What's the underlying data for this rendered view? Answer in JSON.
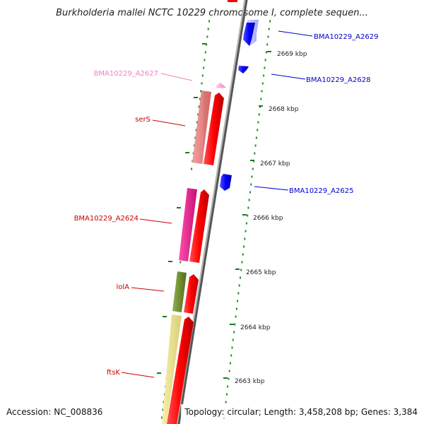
{
  "title": "Burkholderia mallei NCTC 10229 chromosome I, complete sequen...",
  "footer": {
    "accession": "Accession: NC_008836",
    "summary": "Topology: circular; Length: 3,458,208 bp; Genes: 3,384"
  },
  "scale": {
    "ticks": [
      "2669 kbp",
      "2668 kbp",
      "2667 kbp",
      "2666 kbp",
      "2665 kbp",
      "2664 kbp",
      "2663 kbp"
    ]
  },
  "genes": [
    {
      "name": "BMA10229_A2629",
      "strand": "minus",
      "color": "#0000cc"
    },
    {
      "name": "BMA10229_A2628",
      "strand": "minus",
      "color": "#0000cc"
    },
    {
      "name": "BMA10229_A2627",
      "strand": "plus",
      "color": "#f080c0"
    },
    {
      "name": "serS",
      "strand": "plus",
      "color": "#cc0000"
    },
    {
      "name": "BMA10229_A2625",
      "strand": "minus",
      "color": "#0000cc"
    },
    {
      "name": "BMA10229_A2624",
      "strand": "plus",
      "color": "#cc0000"
    },
    {
      "name": "lolA",
      "strand": "plus",
      "color": "#cc0000"
    },
    {
      "name": "ftsK",
      "strand": "plus",
      "color": "#cc0000"
    }
  ],
  "colors": {
    "backbone": "#999999",
    "forward_cds": "#ff0000",
    "reverse_cds": "#0000ff",
    "gc_dots": "#228b22",
    "ser_s_gene": "#e88080",
    "a2624_gene": "#ff1493",
    "lol_a_gene": "#6b8e23",
    "fts_k_gene": "#f0e68c",
    "a2627_gene": "#ffb6c1"
  }
}
